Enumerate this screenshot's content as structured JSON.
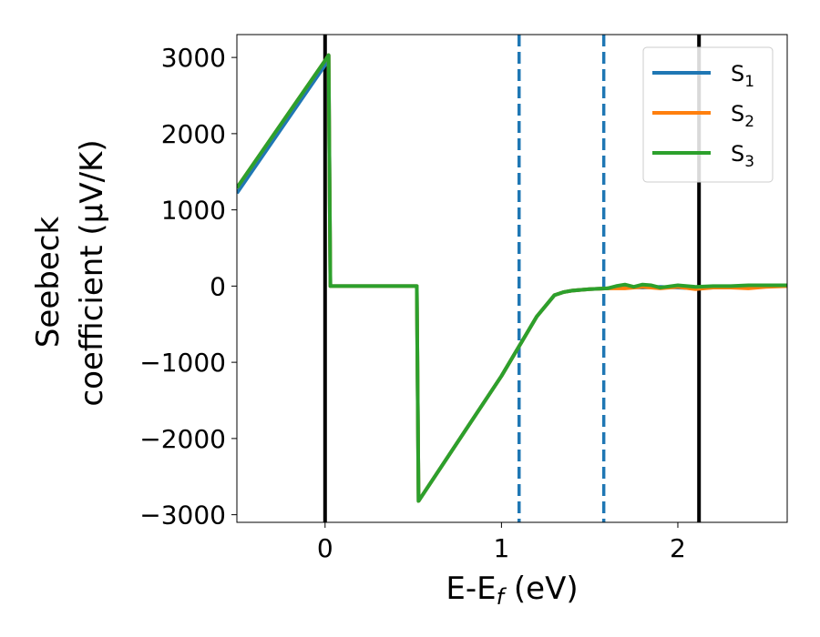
{
  "chart_data": {
    "type": "line",
    "xlabel": "E-E_f (eV)",
    "xlabel_parts": {
      "main": "E-E",
      "sub": "f",
      "tail": " (eV)"
    },
    "ylabel_line1": "Seebeck",
    "ylabel_line2": "coefficient  (μV/K)",
    "xlim": [
      -0.5,
      2.62
    ],
    "ylim": [
      -3100,
      3300
    ],
    "xticks": [
      0,
      1,
      2
    ],
    "xtick_labels": [
      "0",
      "1",
      "2"
    ],
    "yticks": [
      3000,
      2000,
      1000,
      0,
      -1000,
      -2000,
      -3000
    ],
    "ytick_labels": [
      "3000",
      "2000",
      "1000",
      "0",
      "−1000",
      "−2000",
      "−3000"
    ],
    "grid": false,
    "legend_position": "top-right",
    "series": [
      {
        "name": "S1",
        "label_main": "S",
        "label_sub": "1",
        "color": "#1f77b4",
        "x": [
          -0.5,
          0.0,
          0.02,
          0.03,
          0.52,
          0.53,
          1.0,
          1.2,
          1.3,
          1.35,
          1.4,
          1.5,
          1.6,
          1.7,
          1.8,
          1.9,
          2.0,
          2.1,
          2.2,
          2.3,
          2.4,
          2.5,
          2.62
        ],
        "y": [
          1220,
          2900,
          3030,
          0,
          0,
          -2820,
          -1180,
          -400,
          -120,
          -80,
          -60,
          -40,
          -30,
          -10,
          -20,
          -10,
          -20,
          -30,
          -20,
          -10,
          -10,
          0,
          0
        ]
      },
      {
        "name": "S2",
        "label_main": "S",
        "label_sub": "2",
        "color": "#ff7f0e",
        "x": [
          -0.5,
          0.0,
          0.02,
          0.03,
          0.52,
          0.53,
          1.0,
          1.2,
          1.3,
          1.35,
          1.4,
          1.5,
          1.6,
          1.7,
          1.8,
          1.9,
          2.0,
          2.1,
          2.2,
          2.3,
          2.4,
          2.5,
          2.62
        ],
        "y": [
          1290,
          2960,
          3030,
          0,
          0,
          -2820,
          -1180,
          -400,
          -120,
          -80,
          -60,
          -40,
          -30,
          -30,
          -10,
          -30,
          -10,
          -40,
          -20,
          -20,
          -30,
          -10,
          0
        ]
      },
      {
        "name": "S3",
        "label_main": "S",
        "label_sub": "3",
        "color": "#2ca02c",
        "x": [
          -0.5,
          0.0,
          0.02,
          0.03,
          0.52,
          0.53,
          1.0,
          1.2,
          1.3,
          1.35,
          1.4,
          1.5,
          1.6,
          1.65,
          1.7,
          1.75,
          1.8,
          1.85,
          1.9,
          2.0,
          2.1,
          2.2,
          2.3,
          2.4,
          2.5,
          2.62
        ],
        "y": [
          1290,
          2960,
          3030,
          0,
          0,
          -2820,
          -1180,
          -400,
          -120,
          -80,
          -60,
          -40,
          -30,
          0,
          20,
          -10,
          20,
          10,
          -20,
          10,
          -10,
          0,
          0,
          10,
          10,
          10
        ]
      }
    ],
    "vlines": [
      {
        "x": 0.0,
        "style": "solid",
        "color": "#000000"
      },
      {
        "x": 2.12,
        "style": "solid",
        "color": "#000000"
      },
      {
        "x": 1.1,
        "style": "dashed",
        "color": "#1f77b4"
      },
      {
        "x": 1.58,
        "style": "dashed",
        "color": "#1f77b4"
      }
    ]
  }
}
